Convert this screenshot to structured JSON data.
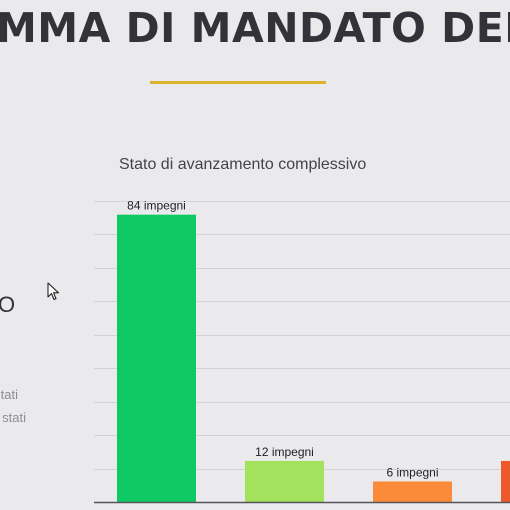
{
  "page": {
    "title": "MMA DI MANDATO DEL SI",
    "left_big_text": "O",
    "left_small_a": "tati",
    "left_small_b": "stati"
  },
  "colors": {
    "background": "#eae9ec",
    "underline": "#d8b52a",
    "bar_green": "#0fc964",
    "bar_lightgreen": "#a3e25d",
    "bar_orange": "#fb8a39",
    "bar_red": "#ec5a2c"
  },
  "chart_data": {
    "type": "bar",
    "title": "Stato di avanzamento complessivo",
    "categories": [
      "",
      "",
      "",
      ""
    ],
    "values": [
      84,
      12,
      6,
      12
    ],
    "data_labels": [
      "84 impegni",
      "12 impegni",
      "6 impegni",
      ""
    ],
    "bar_colors": [
      "#0fc964",
      "#a3e25d",
      "#fb8a39",
      "#ec5a2c"
    ],
    "ylim": [
      0,
      88
    ],
    "grid": true,
    "xlabel": "",
    "ylabel": ""
  }
}
